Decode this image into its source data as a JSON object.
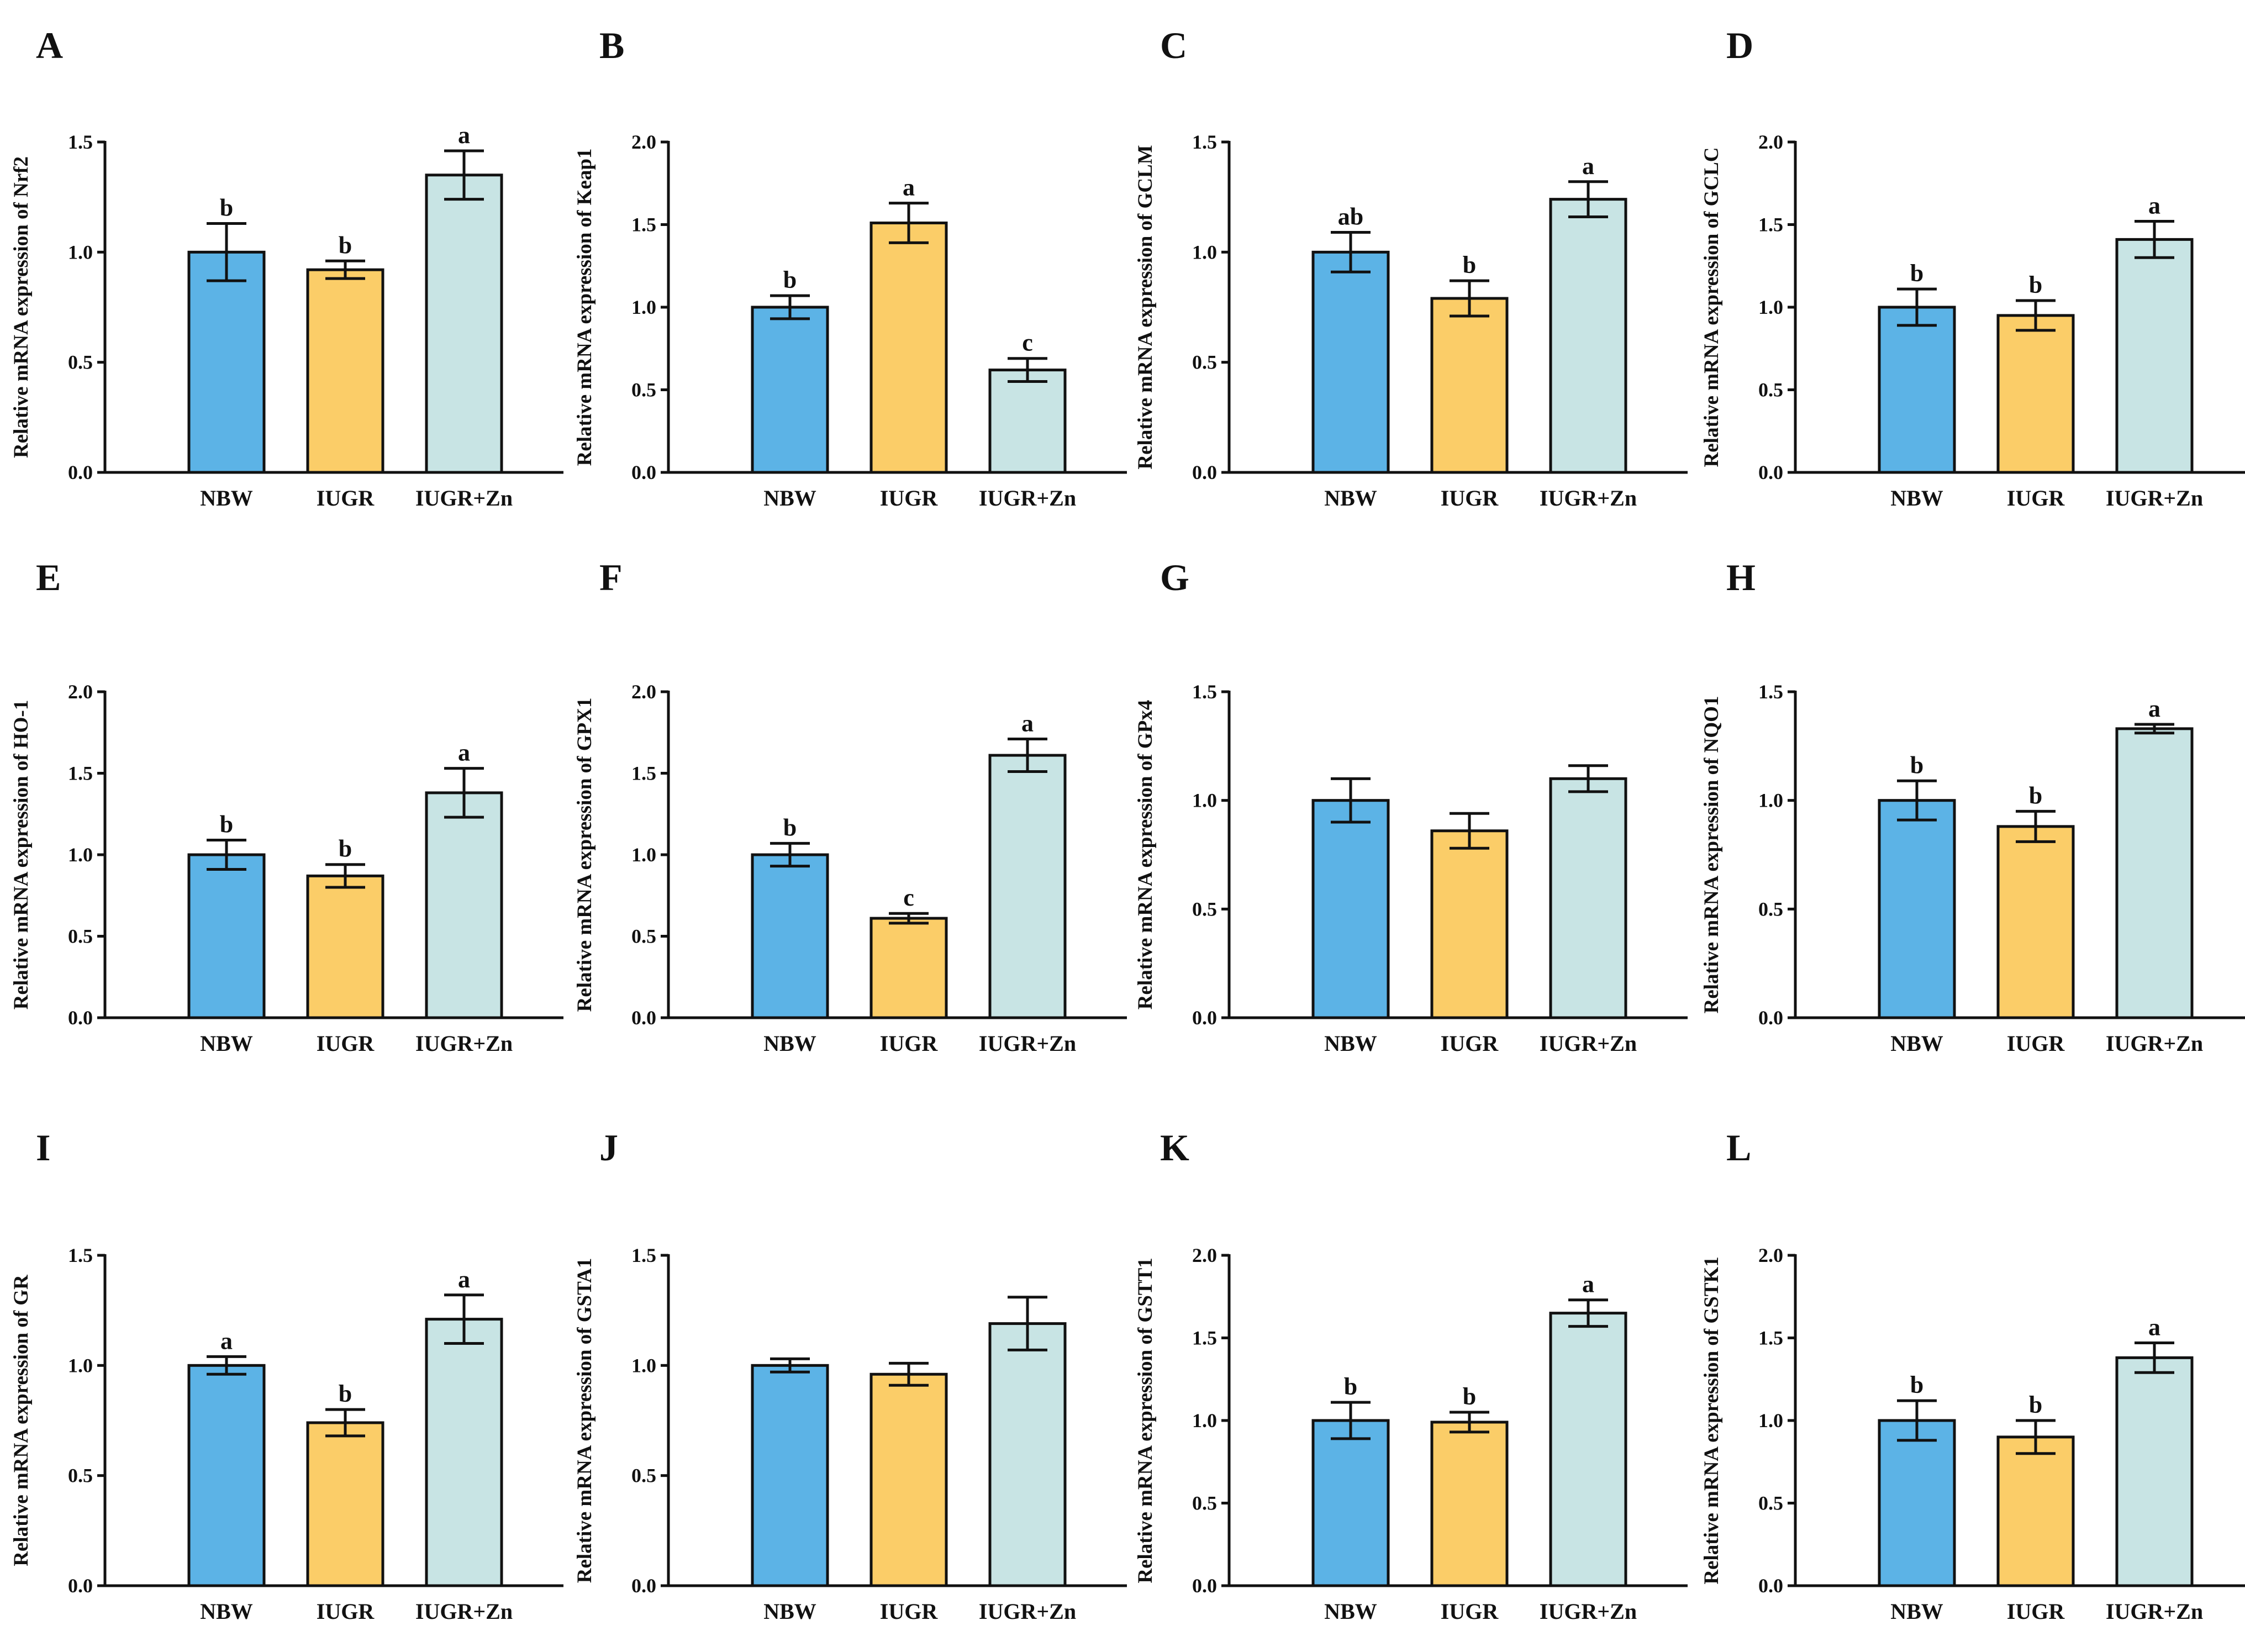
{
  "chart_data": [
    {
      "panel": "A",
      "type": "bar",
      "categories": [
        "NBW",
        "IUGR",
        "IUGR+Zn"
      ],
      "ylabel": "Relative mRNA expression of Nrf2",
      "ylim": [
        0,
        1.5
      ],
      "yticks": [
        "0.0",
        "0.5",
        "1.0",
        "1.5"
      ],
      "values": [
        1.0,
        0.92,
        1.35
      ],
      "errors": [
        0.13,
        0.04,
        0.11
      ],
      "letters": [
        "b",
        "b",
        "a"
      ]
    },
    {
      "panel": "B",
      "type": "bar",
      "categories": [
        "NBW",
        "IUGR",
        "IUGR+Zn"
      ],
      "ylabel": "Relative mRNA expression of Keap1",
      "ylim": [
        0,
        2.0
      ],
      "yticks": [
        "0.0",
        "0.5",
        "1.0",
        "1.5",
        "2.0"
      ],
      "values": [
        1.0,
        1.51,
        0.62
      ],
      "errors": [
        0.07,
        0.12,
        0.07
      ],
      "letters": [
        "b",
        "a",
        "c"
      ]
    },
    {
      "panel": "C",
      "type": "bar",
      "categories": [
        "NBW",
        "IUGR",
        "IUGR+Zn"
      ],
      "ylabel": "Relative mRNA expression of GCLM",
      "ylim": [
        0,
        1.5
      ],
      "yticks": [
        "0.0",
        "0.5",
        "1.0",
        "1.5"
      ],
      "values": [
        1.0,
        0.79,
        1.24
      ],
      "errors": [
        0.09,
        0.08,
        0.08
      ],
      "letters": [
        "ab",
        "b",
        "a"
      ]
    },
    {
      "panel": "D",
      "type": "bar",
      "categories": [
        "NBW",
        "IUGR",
        "IUGR+Zn"
      ],
      "ylabel": "Relative mRNA expression of GCLC",
      "ylim": [
        0,
        2.0
      ],
      "yticks": [
        "0.0",
        "0.5",
        "1.0",
        "1.5",
        "2.0"
      ],
      "values": [
        1.0,
        0.95,
        1.41
      ],
      "errors": [
        0.11,
        0.09,
        0.11
      ],
      "letters": [
        "b",
        "b",
        "a"
      ]
    },
    {
      "panel": "E",
      "type": "bar",
      "categories": [
        "NBW",
        "IUGR",
        "IUGR+Zn"
      ],
      "ylabel": "Relative mRNA expression of HO-1",
      "ylim": [
        0,
        2.0
      ],
      "yticks": [
        "0.0",
        "0.5",
        "1.0",
        "1.5",
        "2.0"
      ],
      "values": [
        1.0,
        0.87,
        1.38
      ],
      "errors": [
        0.09,
        0.07,
        0.15
      ],
      "letters": [
        "b",
        "b",
        "a"
      ]
    },
    {
      "panel": "F",
      "type": "bar",
      "categories": [
        "NBW",
        "IUGR",
        "IUGR+Zn"
      ],
      "ylabel": "Relative mRNA expression of GPX1",
      "ylim": [
        0,
        2.0
      ],
      "yticks": [
        "0.0",
        "0.5",
        "1.0",
        "1.5",
        "2.0"
      ],
      "values": [
        1.0,
        0.61,
        1.61
      ],
      "errors": [
        0.07,
        0.03,
        0.1
      ],
      "letters": [
        "b",
        "c",
        "a"
      ]
    },
    {
      "panel": "G",
      "type": "bar",
      "categories": [
        "NBW",
        "IUGR",
        "IUGR+Zn"
      ],
      "ylabel": "Relative mRNA expression of GPx4",
      "ylim": [
        0,
        1.5
      ],
      "yticks": [
        "0.0",
        "0.5",
        "1.0",
        "1.5"
      ],
      "values": [
        1.0,
        0.86,
        1.1
      ],
      "errors": [
        0.1,
        0.08,
        0.06
      ],
      "letters": [
        "",
        "",
        ""
      ]
    },
    {
      "panel": "H",
      "type": "bar",
      "categories": [
        "NBW",
        "IUGR",
        "IUGR+Zn"
      ],
      "ylabel": "Relative mRNA expression of NQO1",
      "ylim": [
        0,
        1.5
      ],
      "yticks": [
        "0.0",
        "0.5",
        "1.0",
        "1.5"
      ],
      "values": [
        1.0,
        0.88,
        1.33
      ],
      "errors": [
        0.09,
        0.07,
        0.02
      ],
      "letters": [
        "b",
        "b",
        "a"
      ]
    },
    {
      "panel": "I",
      "type": "bar",
      "categories": [
        "NBW",
        "IUGR",
        "IUGR+Zn"
      ],
      "ylabel": "Relative mRNA expression of GR",
      "ylim": [
        0,
        1.5
      ],
      "yticks": [
        "0.0",
        "0.5",
        "1.0",
        "1.5"
      ],
      "values": [
        1.0,
        0.74,
        1.21
      ],
      "errors": [
        0.04,
        0.06,
        0.11
      ],
      "letters": [
        "a",
        "b",
        "a"
      ]
    },
    {
      "panel": "J",
      "type": "bar",
      "categories": [
        "NBW",
        "IUGR",
        "IUGR+Zn"
      ],
      "ylabel": "Relative mRNA expression of GSTA1",
      "ylim": [
        0,
        1.5
      ],
      "yticks": [
        "0.0",
        "0.5",
        "1.0",
        "1.5"
      ],
      "values": [
        1.0,
        0.96,
        1.19
      ],
      "errors": [
        0.03,
        0.05,
        0.12
      ],
      "letters": [
        "",
        "",
        ""
      ]
    },
    {
      "panel": "K",
      "type": "bar",
      "categories": [
        "NBW",
        "IUGR",
        "IUGR+Zn"
      ],
      "ylabel": "Relative mRNA expression of GSTT1",
      "ylim": [
        0,
        2.0
      ],
      "yticks": [
        "0.0",
        "0.5",
        "1.0",
        "1.5",
        "2.0"
      ],
      "values": [
        1.0,
        0.99,
        1.65
      ],
      "errors": [
        0.11,
        0.06,
        0.08
      ],
      "letters": [
        "b",
        "b",
        "a"
      ]
    },
    {
      "panel": "L",
      "type": "bar",
      "categories": [
        "NBW",
        "IUGR",
        "IUGR+Zn"
      ],
      "ylabel": "Relative mRNA expression of GSTK1",
      "ylim": [
        0,
        2.0
      ],
      "yticks": [
        "0.0",
        "0.5",
        "1.0",
        "1.5",
        "2.0"
      ],
      "values": [
        1.0,
        0.9,
        1.38
      ],
      "errors": [
        0.12,
        0.1,
        0.09
      ],
      "letters": [
        "b",
        "b",
        "a"
      ]
    }
  ],
  "colors": {
    "NBW": "#5cb3e6",
    "IUGR": "#fbcd68",
    "IUGR+Zn": "#c8e4e4",
    "stroke": "#111111"
  }
}
